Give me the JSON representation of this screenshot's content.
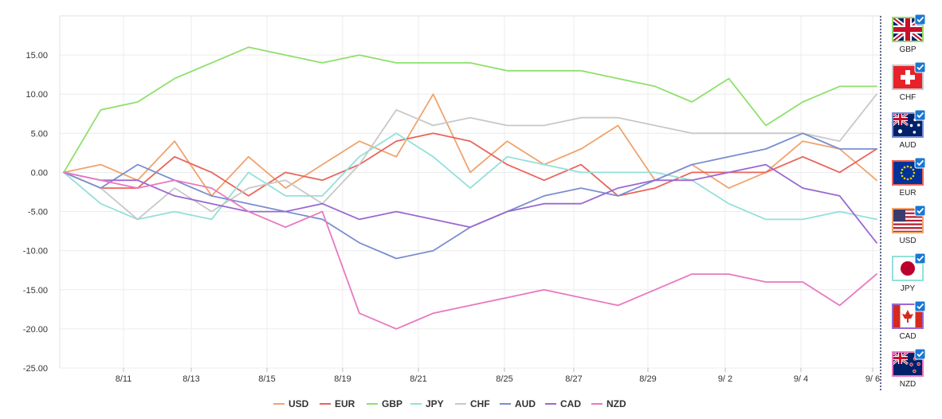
{
  "chart_data": {
    "type": "line",
    "x": [
      "8/10",
      "8/11",
      "8/12",
      "8/13",
      "8/14",
      "8/15",
      "8/16",
      "8/19",
      "8/20",
      "8/21",
      "8/22",
      "8/23",
      "8/25",
      "8/26",
      "8/27",
      "8/28",
      "8/29",
      "8/30",
      "9/2",
      "9/3",
      "9/4",
      "9/5",
      "9/6"
    ],
    "x_ticks": [
      "8/11",
      "8/13",
      "8/15",
      "8/19",
      "8/21",
      "8/25",
      "8/27",
      "8/29",
      "9/ 2",
      "9/ 4",
      "9/ 6"
    ],
    "y_ticks": [
      "15.00",
      "10.00",
      "5.00",
      "0.00",
      "-5.00",
      "-10.00",
      "-15.00",
      "-20.00",
      "-25.00"
    ],
    "ylim": [
      -25,
      20
    ],
    "grid": true,
    "legend": "bottom",
    "series": [
      {
        "name": "USD",
        "color": "#f0a36c",
        "values": [
          0,
          1,
          -1,
          4,
          -3,
          2,
          -2,
          1,
          4,
          2,
          10,
          0,
          4,
          1,
          3,
          6,
          -1,
          1,
          -2,
          0,
          4,
          3,
          -1
        ]
      },
      {
        "name": "EUR",
        "color": "#e8655c",
        "values": [
          0,
          -2,
          -2,
          2,
          0,
          -3,
          0,
          -1,
          1,
          4,
          5,
          4,
          1,
          -1,
          1,
          -3,
          -2,
          0,
          0,
          0,
          2,
          0,
          3
        ]
      },
      {
        "name": "GBP",
        "color": "#8ee06a",
        "values": [
          0,
          8,
          9,
          12,
          14,
          16,
          15,
          14,
          15,
          14,
          14,
          14,
          13,
          13,
          13,
          12,
          11,
          9,
          12,
          6,
          9,
          11,
          11
        ]
      },
      {
        "name": "JPY",
        "color": "#93e0da",
        "values": [
          0,
          -4,
          -6,
          -5,
          -6,
          0,
          -3,
          -3,
          2,
          5,
          2,
          -2,
          2,
          1,
          0,
          0,
          0,
          -1,
          -4,
          -6,
          -6,
          -5,
          -6
        ]
      },
      {
        "name": "CHF",
        "color": "#c8c8c8",
        "values": [
          0,
          -2,
          -6,
          -2,
          -5,
          -2,
          -1,
          -4,
          1,
          8,
          6,
          7,
          6,
          6,
          7,
          7,
          6,
          5,
          5,
          5,
          5,
          4,
          10
        ]
      },
      {
        "name": "AUD",
        "color": "#7a8ed0",
        "values": [
          0,
          -2,
          1,
          -1,
          -3,
          -4,
          -5,
          -6,
          -9,
          -11,
          -10,
          -7,
          -5,
          -3,
          -2,
          -3,
          -1,
          1,
          2,
          3,
          5,
          3,
          3
        ]
      },
      {
        "name": "CAD",
        "color": "#9a68d0",
        "values": [
          0,
          -1,
          -1,
          -3,
          -4,
          -5,
          -5,
          -4,
          -6,
          -5,
          -6,
          -7,
          -5,
          -4,
          -4,
          -2,
          -1,
          -1,
          0,
          1,
          -2,
          -3,
          -9
        ]
      },
      {
        "name": "NZD",
        "color": "#e878c0",
        "values": [
          0,
          -1,
          -2,
          -1,
          -2,
          -5,
          -7,
          -5,
          -18,
          -20,
          -18,
          -17,
          -16,
          -15,
          -16,
          -17,
          -15,
          -13,
          -13,
          -14,
          -14,
          -17,
          -13
        ]
      }
    ]
  },
  "currency_panel": [
    {
      "label": "GBP",
      "flag": "gb-flag-icon"
    },
    {
      "label": "CHF",
      "flag": "ch-flag-icon"
    },
    {
      "label": "AUD",
      "flag": "au-flag-icon"
    },
    {
      "label": "EUR",
      "flag": "eu-flag-icon"
    },
    {
      "label": "USD",
      "flag": "us-flag-icon"
    },
    {
      "label": "JPY",
      "flag": "jp-flag-icon"
    },
    {
      "label": "CAD",
      "flag": "ca-flag-icon"
    },
    {
      "label": "NZD",
      "flag": "nz-flag-icon"
    }
  ]
}
